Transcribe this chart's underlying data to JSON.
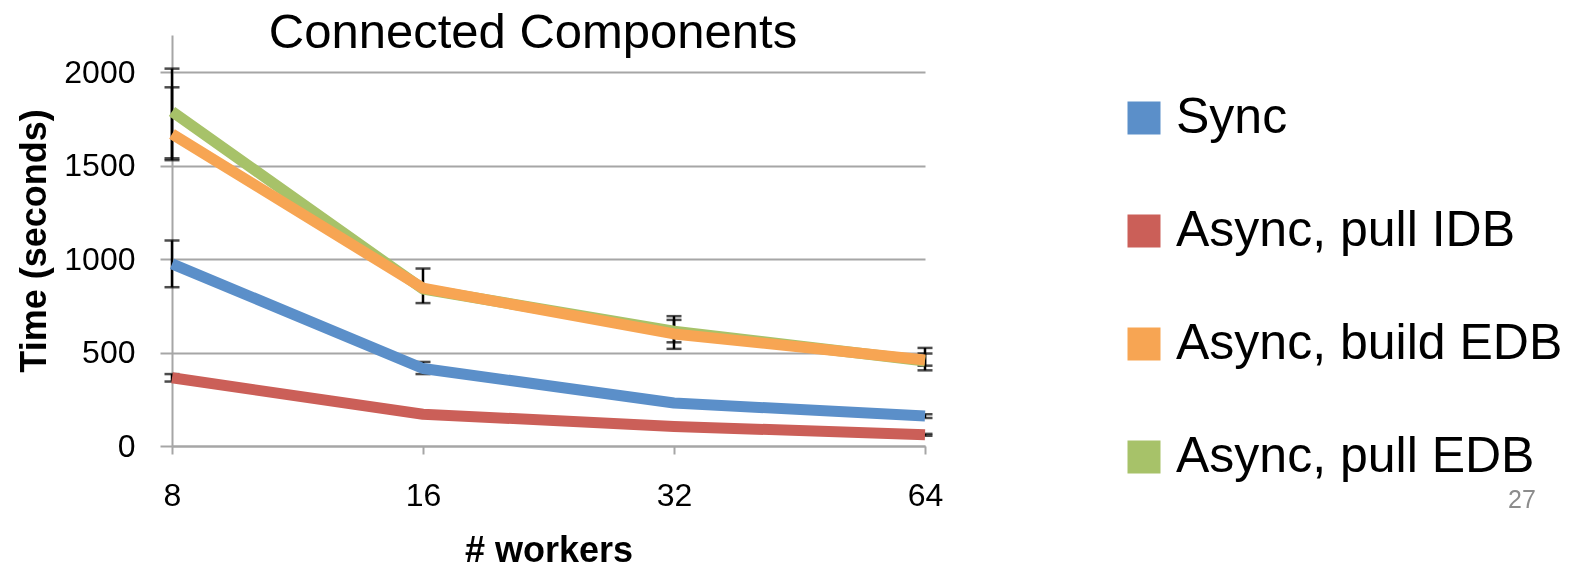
{
  "chart_data": {
    "type": "line",
    "title": "Connected Components",
    "xlabel": "# workers",
    "ylabel": "Time (seconds)",
    "categories": [
      "8",
      "16",
      "32",
      "64"
    ],
    "series": [
      {
        "name": "Sync",
        "color": "#5b8fc9",
        "values": [
          975,
          415,
          230,
          160
        ],
        "errors": [
          [
            850,
            1100
          ],
          [
            385,
            450
          ],
          null,
          [
            150,
            170
          ]
        ]
      },
      {
        "name": "Async, pull IDB",
        "color": "#cb5f58",
        "values": [
          365,
          170,
          105,
          60
        ],
        "errors": [
          [
            345,
            385
          ],
          null,
          null,
          [
            55,
            65
          ]
        ]
      },
      {
        "name": "Async, build EDB",
        "color": "#f7a553",
        "values": [
          1670,
          845,
          600,
          460
        ],
        "errors": [
          [
            1530,
            1920
          ],
          [
            765,
            950
          ],
          [
            520,
            675
          ],
          [
            430,
            525
          ]
        ]
      },
      {
        "name": "Async, pull EDB",
        "color": "#a7c269",
        "values": [
          1790,
          840,
          615,
          455
        ],
        "errors": [
          [
            1540,
            2020
          ],
          null,
          [
            555,
            695
          ],
          [
            405,
            495
          ]
        ]
      }
    ],
    "ylim": [
      0,
      2200
    ],
    "yticks": [
      0,
      500,
      1000,
      1500,
      2000
    ],
    "grid": "y",
    "legend": "right",
    "annotations": [
      "27"
    ]
  }
}
